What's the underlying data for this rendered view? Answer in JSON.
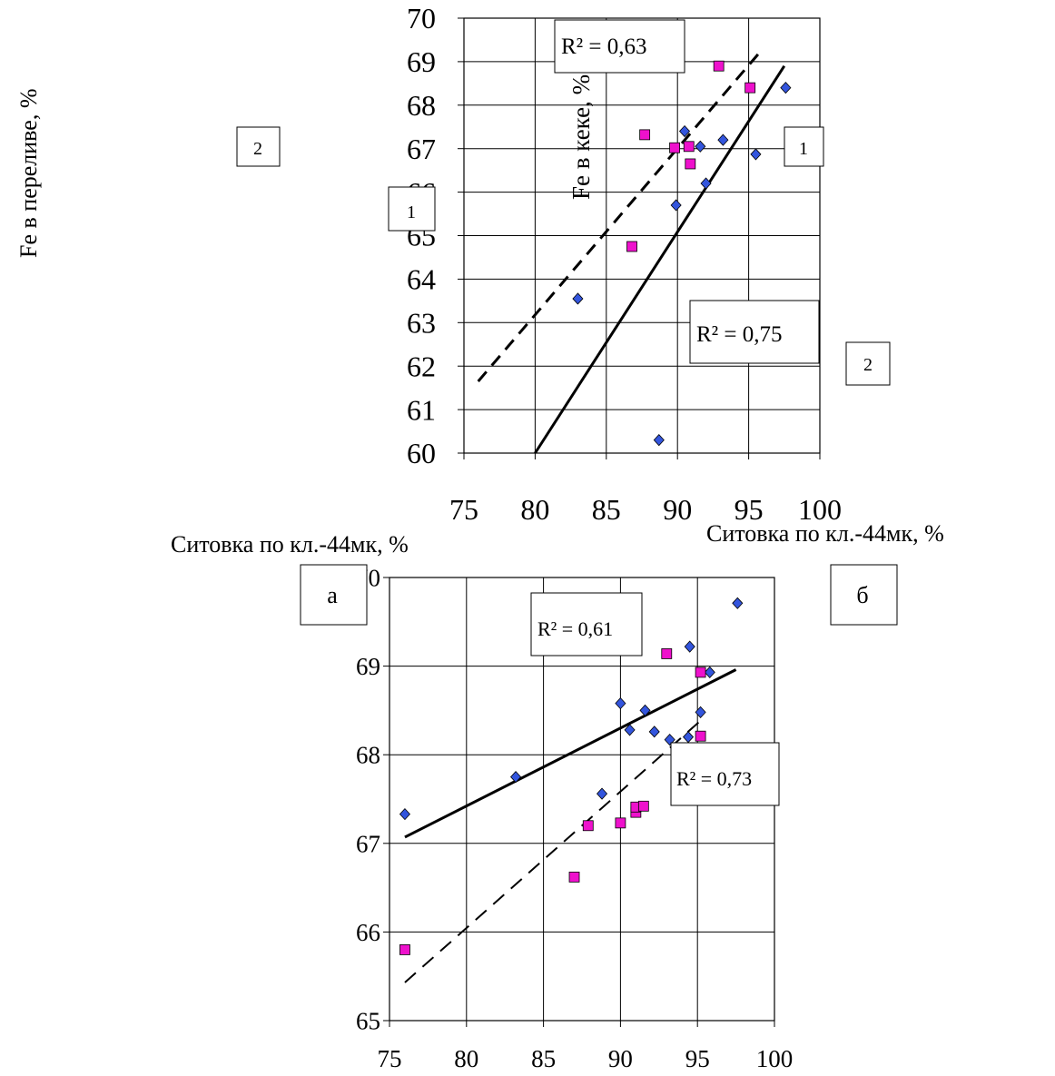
{
  "labels": {
    "y_axis_top": "Fe в переливе, %",
    "y_axis_overlap": "Fe в кеке, %",
    "x_axis_top_left": "Ситовка по кл.-44мк, %",
    "x_axis_top_right": "Ситовка по кл.-44мк, %",
    "panel_a": "а",
    "panel_b": "б",
    "box_2_left": "2",
    "box_1_left": "1",
    "box_1_right": "1",
    "box_2_right": "2"
  },
  "colors": {
    "series_blue": "#3355dd",
    "series_magenta": "#ee11cc",
    "grid": "#000000",
    "line": "#000000"
  },
  "chart_data": [
    {
      "type": "scatter",
      "xlim": [
        75,
        100
      ],
      "ylim": [
        60,
        70
      ],
      "xticks": [
        "75",
        "80",
        "85",
        "90",
        "95",
        "100"
      ],
      "yticks": [
        "60",
        "61",
        "62",
        "63",
        "64",
        "65",
        "66",
        "67",
        "68",
        "69",
        "70"
      ],
      "grid": true,
      "annotations": [
        "R² = 0,63",
        "R² = 0,75"
      ],
      "series": [
        {
          "marker": "diamond",
          "color": "#3355dd",
          "points": [
            [
              83,
              63.55
            ],
            [
              88.7,
              60.3
            ],
            [
              89.9,
              65.7
            ],
            [
              90.5,
              67.4
            ],
            [
              91.6,
              67.05
            ],
            [
              92,
              66.2
            ],
            [
              93.2,
              67.2
            ],
            [
              95.5,
              66.87
            ],
            [
              97.6,
              68.4
            ]
          ]
        },
        {
          "marker": "square",
          "color": "#ee11cc",
          "points": [
            [
              86.8,
              64.75
            ],
            [
              87.7,
              67.32
            ],
            [
              89.8,
              67.02
            ],
            [
              90.8,
              67.05
            ],
            [
              90.9,
              66.65
            ],
            [
              92.9,
              68.9
            ],
            [
              95.1,
              68.4
            ]
          ]
        }
      ],
      "trendlines": [
        {
          "style": "solid",
          "x": [
            80,
            97.5
          ],
          "y": [
            60,
            68.9
          ]
        },
        {
          "style": "dashed",
          "x": [
            76,
            96
          ],
          "y": [
            61.65,
            69.3
          ]
        }
      ]
    },
    {
      "type": "scatter",
      "xlim": [
        75,
        100
      ],
      "ylim": [
        65,
        70
      ],
      "xticks": [
        "75",
        "80",
        "85",
        "90",
        "95",
        "100"
      ],
      "yticks": [
        "65",
        "66",
        "67",
        "68",
        "69",
        "70"
      ],
      "grid": true,
      "annotations": [
        "R² = 0,61",
        "R² = 0,73"
      ],
      "series": [
        {
          "marker": "diamond",
          "color": "#3355dd",
          "points": [
            [
              76,
              67.33
            ],
            [
              83.2,
              67.75
            ],
            [
              88.8,
              67.56
            ],
            [
              90,
              68.58
            ],
            [
              90.6,
              68.28
            ],
            [
              91.6,
              68.5
            ],
            [
              92.2,
              68.26
            ],
            [
              93.2,
              68.17
            ],
            [
              94.4,
              68.2
            ],
            [
              94.5,
              69.22
            ],
            [
              95.2,
              68.48
            ],
            [
              95.8,
              68.93
            ],
            [
              97.6,
              69.71
            ]
          ]
        },
        {
          "marker": "square",
          "color": "#ee11cc",
          "points": [
            [
              76,
              65.8
            ],
            [
              87,
              66.62
            ],
            [
              87.9,
              67.2
            ],
            [
              90,
              67.23
            ],
            [
              91,
              67.35
            ],
            [
              91,
              67.41
            ],
            [
              91.5,
              67.42
            ],
            [
              93,
              69.14
            ],
            [
              95.2,
              68.93
            ],
            [
              95.2,
              68.21
            ]
          ]
        }
      ],
      "trendlines": [
        {
          "style": "solid",
          "x": [
            76,
            97.5
          ],
          "y": [
            67.07,
            68.96
          ]
        },
        {
          "style": "dashed",
          "x": [
            76,
            95.3
          ],
          "y": [
            65.43,
            68.4
          ]
        }
      ]
    }
  ]
}
